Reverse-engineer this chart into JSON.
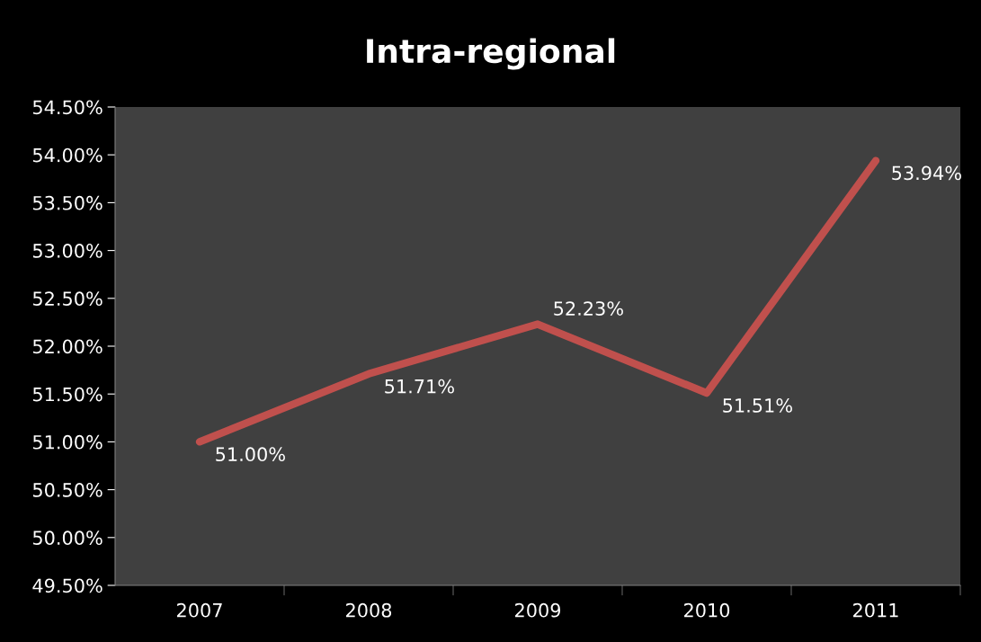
{
  "chart_data": {
    "type": "line",
    "title": "Intra-regional",
    "categories": [
      "2007",
      "2008",
      "2009",
      "2010",
      "2011"
    ],
    "series": [
      {
        "color": "#c0504d",
        "values": [
          51.0,
          51.71,
          52.23,
          51.51,
          53.94
        ],
        "value_labels": [
          "51.00%",
          "51.71%",
          "52.23%",
          "51.51%",
          "53.94%"
        ]
      }
    ],
    "ylim": [
      49.5,
      54.5
    ],
    "yticks": [
      {
        "value": 49.5,
        "label": "49.50%"
      },
      {
        "value": 50.0,
        "label": "50.00%"
      },
      {
        "value": 50.5,
        "label": "50.50%"
      },
      {
        "value": 51.0,
        "label": "51.00%"
      },
      {
        "value": 51.5,
        "label": "51.50%"
      },
      {
        "value": 52.0,
        "label": "52.00%"
      },
      {
        "value": 52.5,
        "label": "52.50%"
      },
      {
        "value": 53.0,
        "label": "53.00%"
      },
      {
        "value": 53.5,
        "label": "53.50%"
      },
      {
        "value": 54.0,
        "label": "54.00%"
      },
      {
        "value": 54.5,
        "label": "54.50%"
      }
    ],
    "grid": false,
    "legend": false,
    "marker": "none",
    "line_style": "solid"
  }
}
